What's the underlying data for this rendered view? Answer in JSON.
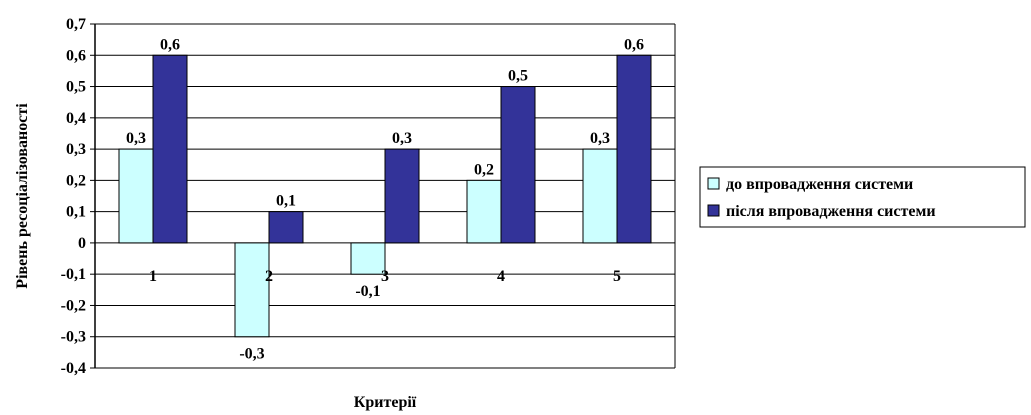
{
  "chart_data": {
    "type": "bar",
    "categories": [
      "1",
      "2",
      "3",
      "4",
      "5"
    ],
    "series": [
      {
        "name": "до впровадження системи",
        "values": [
          0.3,
          -0.3,
          -0.1,
          0.2,
          0.3
        ],
        "labels": [
          "0,3",
          "-0,3",
          "-0,1",
          "0,2",
          "0,3"
        ],
        "color": "#CCFFFF"
      },
      {
        "name": "після впровадження системи",
        "values": [
          0.6,
          0.1,
          0.3,
          0.5,
          0.6
        ],
        "labels": [
          "0,6",
          "0,1",
          "0,3",
          "0,5",
          "0,6"
        ],
        "color": "#333399"
      }
    ],
    "ylim": [
      -0.4,
      0.7
    ],
    "yticks": [
      0.7,
      0.6,
      0.5,
      0.4,
      0.3,
      0.2,
      0.1,
      0,
      -0.1,
      -0.2,
      -0.3,
      -0.4
    ],
    "ytick_labels": [
      "0,7",
      "0,6",
      "0,5",
      "0,4",
      "0,3",
      "0,2",
      "0,1",
      "0",
      "-0,1",
      "-0,2",
      "-0,3",
      "-0,4"
    ],
    "xlabel": "Критерії",
    "ylabel": "Рівень ресоціалізованості",
    "grid": true,
    "legend_position": "right"
  }
}
